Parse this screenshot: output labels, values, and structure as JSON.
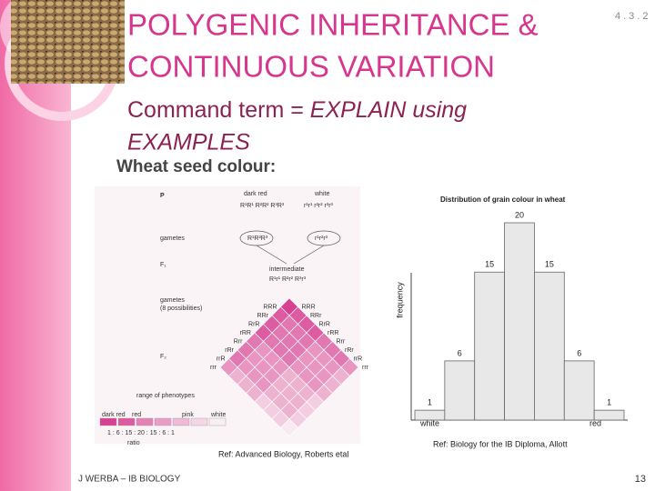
{
  "header": {
    "title_lines": [
      "POLYGENIC INHERITANCE &",
      "CONTINUOUS VARIATION"
    ],
    "topic": "4.3.2"
  },
  "command_term": [
    "Command term = ",
    "EXPLAIN using",
    "EXAMPLES"
  ],
  "section_heading": "Wheat seed colour:",
  "cross_figure": {
    "generation_p": "P",
    "parent_1": "dark red",
    "parent_2": "white",
    "genotype_1": "R¹R¹ R²R² R³R³",
    "genotype_2": "r¹r¹ r²r² r³r³",
    "gametes": "gametes",
    "gamete_1": "R¹R²R³",
    "gamete_2": "r¹r²r³",
    "generation_f1": "F₁",
    "f1_phenotype": "intermediate",
    "f1_genotype": "R¹r¹ R²r² R³r³",
    "gametes_f1": [
      "gametes",
      "(8 possibilities)"
    ],
    "generation_f2": "F₂",
    "gamete_types": [
      "RRR",
      "RRr",
      "RrR",
      "rRR",
      "Rrr",
      "rRr",
      "rrR",
      "rrr"
    ],
    "range_label": "range of phenotypes",
    "phenotypes": [
      "dark red",
      "red",
      "pink",
      "white"
    ],
    "ratio": "1 : 6 : 15 : 20 : 15 : 6 : 1",
    "ratio_label": "ratio"
  },
  "chart_data": {
    "type": "bar",
    "title": "Distribution of grain colour in wheat",
    "y_label": "frequency",
    "x_start_label": "white",
    "x_end_label": "red",
    "categories": [
      null,
      null,
      null,
      null,
      null,
      null,
      null
    ],
    "values": [
      1,
      6,
      15,
      20,
      15,
      6,
      1
    ],
    "color": "#e8e8e8",
    "ylim": [
      0,
      20
    ]
  },
  "references": [
    "Ref: Advanced Biology, Roberts etal",
    "Ref: Biology for the IB Diploma, Allott"
  ],
  "footer": "J WERBA – IB BIOLOGY",
  "page_number": "13"
}
